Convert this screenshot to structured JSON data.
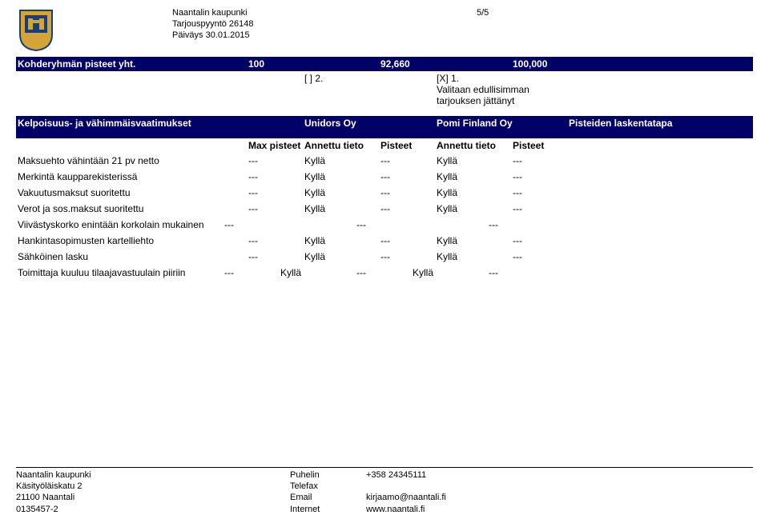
{
  "header": {
    "org": "Naantalin kaupunki",
    "ref": "Tarjouspyyntö 26148",
    "date": "Päiväys 30.01.2015",
    "page_no": "5/5"
  },
  "section_bar": {
    "title": "Kohderyhmän pisteet yht.",
    "max": "100",
    "col_pts1": "92,660",
    "col_pts2": "100,000"
  },
  "selection": {
    "opt1": "[  ] 2.",
    "opt2": "[X] 1.\nValitaan edullisimman tarjouksen jättänyt"
  },
  "req_header": {
    "title": "Kelpoisuus- ja vähimmäisvaatimukset",
    "vendor1": "Unidors Oy",
    "vendor2": "Pomi Finland Oy",
    "last": "Pisteiden laskentatapa"
  },
  "sub_header": {
    "max": "Max pisteet",
    "at": "Annettu tieto",
    "pts": "Pisteet"
  },
  "rows": [
    {
      "label": "Maksuehto vähintään 21 pv netto",
      "max": "---",
      "v1": "Kyllä",
      "p1": "---",
      "v2": "Kyllä",
      "p2": "---"
    },
    {
      "label": "Merkintä kaupparekisterissä",
      "max": "---",
      "v1": "Kyllä",
      "p1": "---",
      "v2": "Kyllä",
      "p2": "---"
    },
    {
      "label": "Vakuutusmaksut suoritettu",
      "max": "---",
      "v1": "Kyllä",
      "p1": "---",
      "v2": "Kyllä",
      "p2": "---"
    },
    {
      "label": "Verot ja sos.maksut suoritettu",
      "max": "---",
      "v1": "Kyllä",
      "p1": "---",
      "v2": "Kyllä",
      "p2": "---"
    },
    {
      "label": "Viivästyskorko enintään korkolain mukainen",
      "max": "---",
      "v1": "",
      "p1": "---",
      "v2": "",
      "p2": "---"
    },
    {
      "label": "Hankintasopimusten kartelliehto",
      "max": "---",
      "v1": "Kyllä",
      "p1": "---",
      "v2": "Kyllä",
      "p2": "---"
    },
    {
      "label": "Sähköinen lasku",
      "max": "---",
      "v1": "Kyllä",
      "p1": "---",
      "v2": "Kyllä",
      "p2": "---"
    },
    {
      "label": "Toimittaja kuuluu tilaajavastuulain piiriin",
      "max": "---",
      "v1": "Kyllä",
      "p1": "---",
      "v2": "Kyllä",
      "p2": "---"
    }
  ],
  "footer": {
    "col1": [
      "Naantalin kaupunki",
      "Käsityöläiskatu 2",
      "21100 Naantali",
      "0135457-2"
    ],
    "col2": [
      "Puhelin",
      "Telefax",
      "Email",
      "Internet"
    ],
    "col3": [
      "+358 24345111",
      "",
      "kirjaamo@naantali.fi",
      "www.naantali.fi"
    ]
  },
  "colors": {
    "bar_bg": "#000066",
    "bar_fg": "#ffffff",
    "logo_blue": "#1a3e7a",
    "logo_gold": "#d4a437"
  }
}
